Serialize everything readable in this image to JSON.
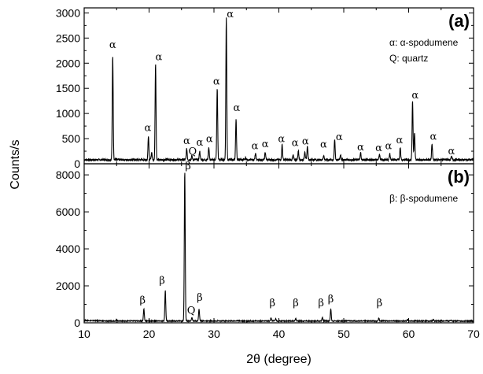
{
  "chart_data": [
    {
      "panel": "(a)",
      "type": "line",
      "xlabel": "2θ (degree)",
      "ylabel": "Counts/s",
      "xlim": [
        10,
        70
      ],
      "ylim": [
        0,
        3100
      ],
      "x_ticks": [
        10,
        20,
        30,
        40,
        50,
        60,
        70
      ],
      "y_ticks": [
        0,
        500,
        1000,
        1500,
        2000,
        2500,
        3000
      ],
      "legend_lines": [
        "α: α-spodumene",
        "Q: quartz"
      ],
      "legend_position": "top-right",
      "baseline": 80,
      "peaks": [
        {
          "x": 14.4,
          "y": 2150
        },
        {
          "x": 19.9,
          "y": 560
        },
        {
          "x": 20.4,
          "y": 230
        },
        {
          "x": 21.0,
          "y": 2000
        },
        {
          "x": 25.8,
          "y": 300
        },
        {
          "x": 26.6,
          "y": 160
        },
        {
          "x": 27.8,
          "y": 250
        },
        {
          "x": 29.2,
          "y": 330
        },
        {
          "x": 30.5,
          "y": 1500
        },
        {
          "x": 31.9,
          "y": 2900
        },
        {
          "x": 33.4,
          "y": 880
        },
        {
          "x": 34.9,
          "y": 120
        },
        {
          "x": 36.4,
          "y": 200
        },
        {
          "x": 37.9,
          "y": 230
        },
        {
          "x": 40.5,
          "y": 380
        },
        {
          "x": 42.2,
          "y": 170
        },
        {
          "x": 43.0,
          "y": 260
        },
        {
          "x": 44.0,
          "y": 250
        },
        {
          "x": 44.4,
          "y": 350
        },
        {
          "x": 46.9,
          "y": 170
        },
        {
          "x": 48.6,
          "y": 480
        },
        {
          "x": 49.5,
          "y": 180
        },
        {
          "x": 52.6,
          "y": 220
        },
        {
          "x": 55.5,
          "y": 180
        },
        {
          "x": 57.1,
          "y": 200
        },
        {
          "x": 58.7,
          "y": 330
        },
        {
          "x": 60.6,
          "y": 1250
        },
        {
          "x": 60.9,
          "y": 600
        },
        {
          "x": 63.6,
          "y": 400
        },
        {
          "x": 66.6,
          "y": 140
        }
      ],
      "annotations": [
        {
          "text": "α",
          "x": 14.4,
          "y": 2300
        },
        {
          "text": "α",
          "x": 19.8,
          "y": 650
        },
        {
          "text": "α",
          "x": 21.5,
          "y": 2060
        },
        {
          "text": "α",
          "x": 25.8,
          "y": 390
        },
        {
          "text": "Q",
          "x": 26.7,
          "y": 180
        },
        {
          "text": "α",
          "x": 27.8,
          "y": 360
        },
        {
          "text": "α",
          "x": 29.3,
          "y": 430
        },
        {
          "text": "α",
          "x": 30.4,
          "y": 1570
        },
        {
          "text": "α",
          "x": 32.5,
          "y": 2910
        },
        {
          "text": "α",
          "x": 33.5,
          "y": 1050
        },
        {
          "text": "α",
          "x": 36.3,
          "y": 290
        },
        {
          "text": "α",
          "x": 37.9,
          "y": 330
        },
        {
          "text": "α",
          "x": 40.4,
          "y": 430
        },
        {
          "text": "α",
          "x": 42.5,
          "y": 350
        },
        {
          "text": "α",
          "x": 44.1,
          "y": 380
        },
        {
          "text": "α",
          "x": 46.9,
          "y": 320
        },
        {
          "text": "α",
          "x": 49.3,
          "y": 470
        },
        {
          "text": "α",
          "x": 52.6,
          "y": 270
        },
        {
          "text": "α",
          "x": 55.4,
          "y": 250
        },
        {
          "text": "α",
          "x": 56.9,
          "y": 290
        },
        {
          "text": "α",
          "x": 58.6,
          "y": 410
        },
        {
          "text": "α",
          "x": 61.0,
          "y": 1300
        },
        {
          "text": "α",
          "x": 63.8,
          "y": 480
        },
        {
          "text": "α",
          "x": 66.6,
          "y": 190
        }
      ]
    },
    {
      "panel": "(b)",
      "type": "line",
      "xlabel": "2θ (degree)",
      "ylabel": "Counts/s",
      "xlim": [
        10,
        70
      ],
      "ylim": [
        0,
        8600
      ],
      "x_ticks": [
        10,
        20,
        30,
        40,
        50,
        60,
        70
      ],
      "y_ticks": [
        0,
        2000,
        4000,
        6000,
        8000
      ],
      "legend_lines": [
        "β: β-spodumene"
      ],
      "legend_position": "top-right",
      "baseline": 100,
      "peaks": [
        {
          "x": 15.0,
          "y": 180
        },
        {
          "x": 19.2,
          "y": 750
        },
        {
          "x": 22.5,
          "y": 1750
        },
        {
          "x": 25.5,
          "y": 8200
        },
        {
          "x": 26.6,
          "y": 280
        },
        {
          "x": 27.7,
          "y": 750
        },
        {
          "x": 33.7,
          "y": 150
        },
        {
          "x": 38.8,
          "y": 280
        },
        {
          "x": 39.5,
          "y": 220
        },
        {
          "x": 42.6,
          "y": 230
        },
        {
          "x": 46.7,
          "y": 300
        },
        {
          "x": 48.0,
          "y": 750
        },
        {
          "x": 55.4,
          "y": 250
        },
        {
          "x": 59.8,
          "y": 180
        },
        {
          "x": 63.8,
          "y": 170
        },
        {
          "x": 65.0,
          "y": 160
        },
        {
          "x": 66.5,
          "y": 140
        }
      ],
      "annotations": [
        {
          "text": "β",
          "x": 19.0,
          "y": 1050
        },
        {
          "text": "β",
          "x": 22.0,
          "y": 2100
        },
        {
          "text": "β",
          "x": 26.0,
          "y": 8300
        },
        {
          "text": "Q",
          "x": 26.5,
          "y": 500
        },
        {
          "text": "β",
          "x": 27.8,
          "y": 1200
        },
        {
          "text": "β",
          "x": 39.0,
          "y": 900
        },
        {
          "text": "β",
          "x": 42.6,
          "y": 900
        },
        {
          "text": "β",
          "x": 46.5,
          "y": 900
        },
        {
          "text": "β",
          "x": 48.0,
          "y": 1100
        },
        {
          "text": "β",
          "x": 55.5,
          "y": 900
        }
      ]
    }
  ]
}
